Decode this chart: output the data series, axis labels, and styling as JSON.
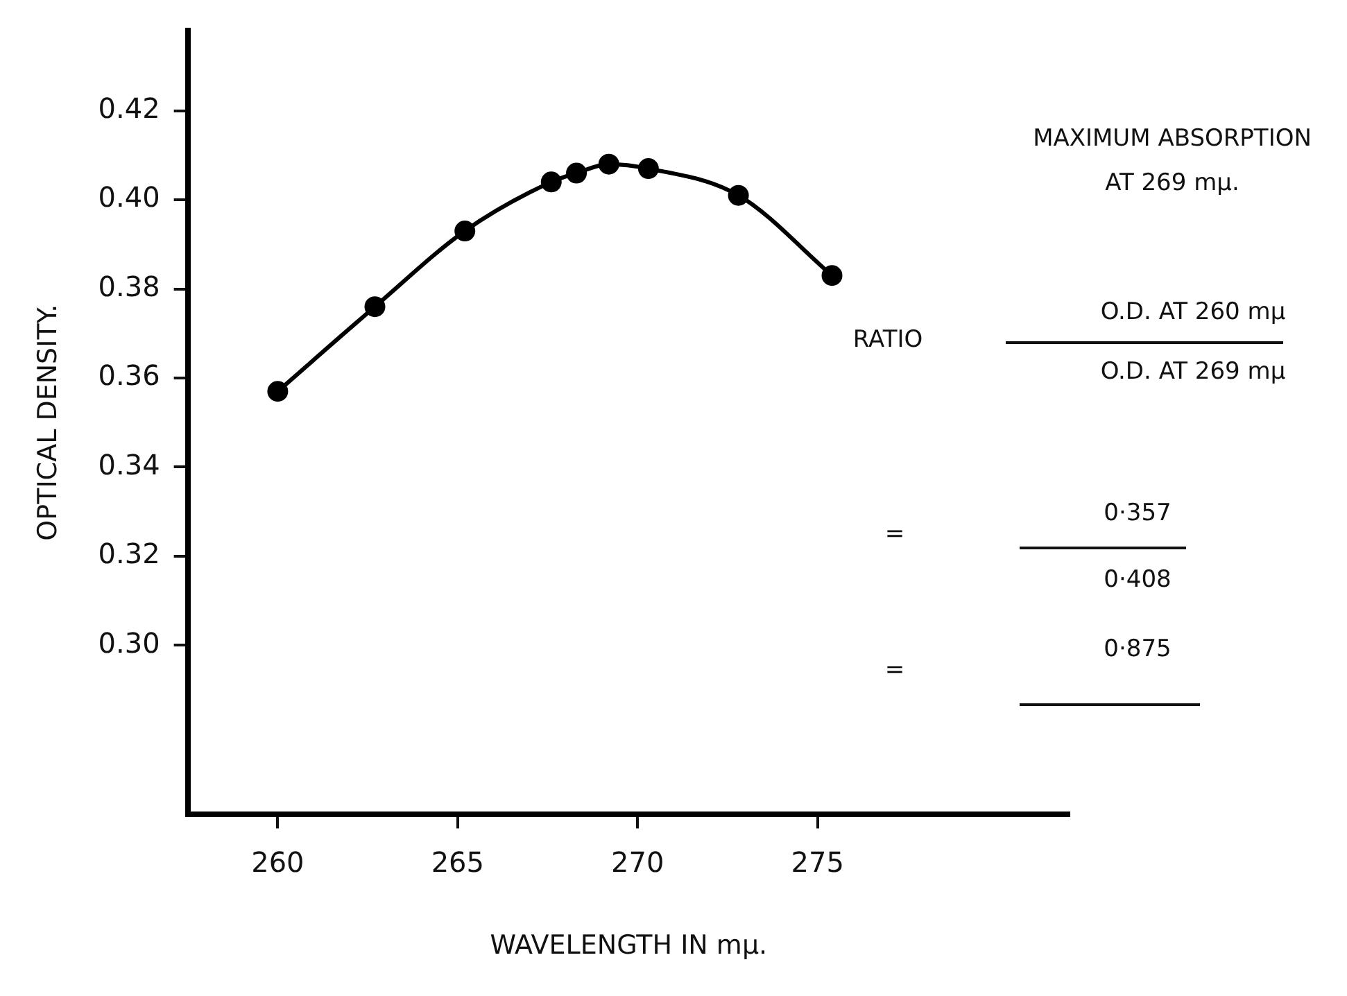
{
  "chart_data": {
    "type": "line",
    "xlabel": "WAVELENGTH IN mμ.",
    "ylabel": "OPTICAL DENSITY.",
    "x": [
      260.0,
      262.7,
      265.2,
      267.6,
      268.3,
      269.2,
      270.3,
      272.8,
      275.4
    ],
    "series": [
      {
        "color": "#000000",
        "values": [
          0.357,
          0.376,
          0.393,
          0.404,
          0.406,
          0.408,
          0.407,
          0.401,
          0.383
        ]
      }
    ],
    "xlim": [
      257.5,
      282
    ],
    "ylim": [
      0.262,
      0.438
    ],
    "xticks": [
      260,
      265,
      270,
      275
    ],
    "yticks": [
      {
        "value": 0.3,
        "label": "0.30"
      },
      0.32,
      0.34,
      0.36,
      0.38,
      {
        "value": 0.4,
        "label": "0.40"
      },
      0.42
    ],
    "marker": "circle",
    "line_style": "solid",
    "grid": false,
    "legend": false,
    "annotations": [
      "MAXIMUM ABSORPTION",
      "AT 269 mμ.",
      "RATIO",
      "O.D. AT 260 mμ",
      "O.D. AT 269 mμ",
      "=",
      "0·357",
      "0·408",
      "=",
      "0·875"
    ]
  }
}
